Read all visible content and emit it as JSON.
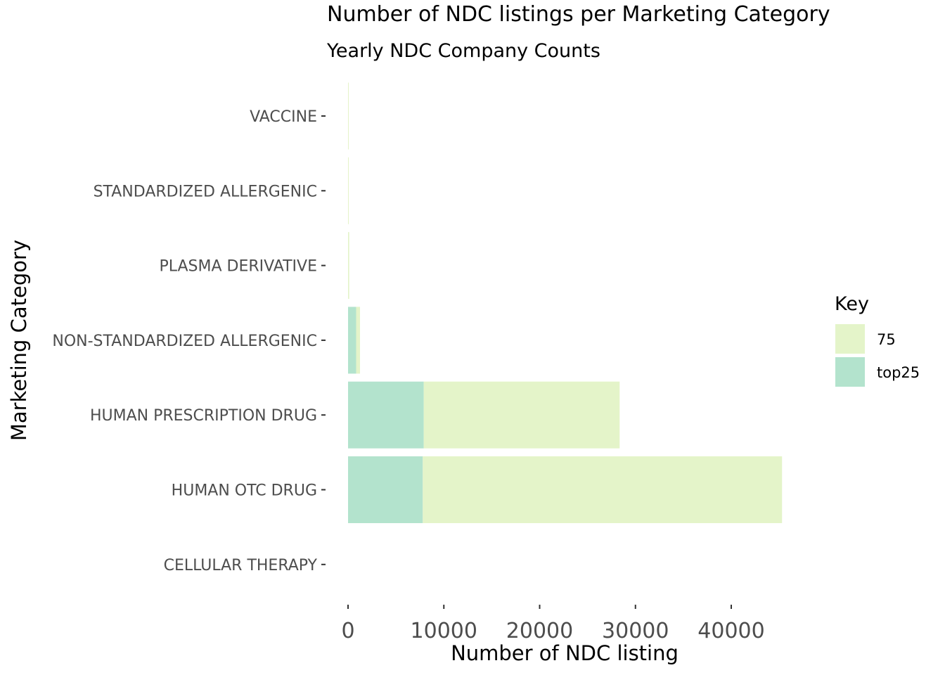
{
  "chart_data": {
    "type": "bar",
    "orientation": "horizontal",
    "stacked": true,
    "title": "Number of NDC listings per Marketing Category",
    "subtitle": "Yearly NDC Company Counts",
    "xlabel": "Number of NDC listing",
    "ylabel": "Marketing Category",
    "categories": [
      "VACCINE",
      "STANDARDIZED ALLERGENIC",
      "PLASMA DERIVATIVE",
      "NON-STANDARDIZED ALLERGENIC",
      "HUMAN PRESCRIPTION DRUG",
      "HUMAN OTC DRUG",
      "CELLULAR THERAPY"
    ],
    "series": [
      {
        "name": "top25",
        "color": "#b3e3cd",
        "values": [
          0,
          0,
          0,
          850,
          7900,
          7800,
          0
        ]
      },
      {
        "name": "75",
        "color": "#e4f4c9",
        "values": [
          60,
          40,
          120,
          400,
          20450,
          37500,
          0
        ]
      }
    ],
    "xlim": [
      0,
      47500
    ],
    "xticks": [
      0,
      10000,
      20000,
      30000,
      40000
    ],
    "legend": {
      "title": "Key",
      "position": "right",
      "entries": [
        "75",
        "top25"
      ]
    },
    "grid": false
  }
}
